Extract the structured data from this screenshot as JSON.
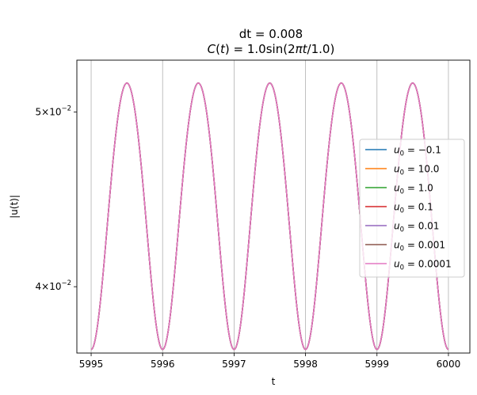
{
  "chart_data": {
    "type": "line",
    "title_line1": "dt = 0.008",
    "title_line2_prefix": "C",
    "title_line2_paren_open": "(",
    "title_line2_var": "t",
    "title_line2_paren_close": ")",
    "title_line2_eq": " = 1.0sin(2",
    "title_line2_pi": "π",
    "title_line2_t": "t",
    "title_line2_tail": "/1.0)",
    "xlabel": "t",
    "ylabel": "|u(t)|",
    "scale_y": "log",
    "xlim": [
      5994.8,
      6000.3
    ],
    "ylim": [
      0.03675,
      0.05342
    ],
    "x_ticks": [
      5995,
      5996,
      5997,
      5998,
      5999,
      6000
    ],
    "x_tick_labels": [
      "5995",
      "5996",
      "5997",
      "5998",
      "5999",
      "6000"
    ],
    "y_ticks": [
      {
        "value": 0.05,
        "mantissa": "5",
        "times": "×",
        "base": "10",
        "exp": "−2"
      },
      {
        "value": 0.04,
        "mantissa": "4",
        "times": "×",
        "base": "10",
        "exp": "−2"
      }
    ],
    "grid_x": true,
    "legend_position": "center-right",
    "series_model": {
      "mean": 0.0444,
      "amplitude": 0.00748,
      "period": 1.0,
      "x_min_at": 5995.0,
      "x_end": 6000.0
    },
    "series": [
      {
        "name": "u0 = −0.1",
        "label_sub": "0",
        "label_value": " = −0.1",
        "color": "#1f77b4"
      },
      {
        "name": "u0 = 10.0",
        "label_sub": "0",
        "label_value": " = 10.0",
        "color": "#ff7f0e"
      },
      {
        "name": "u0 = 1.0",
        "label_sub": "0",
        "label_value": " = 1.0",
        "color": "#2ca02c"
      },
      {
        "name": "u0 = 0.1",
        "label_sub": "0",
        "label_value": " = 0.1",
        "color": "#d62728"
      },
      {
        "name": "u0 = 0.01",
        "label_sub": "0",
        "label_value": " = 0.01",
        "color": "#9467bd"
      },
      {
        "name": "u0 = 0.001",
        "label_sub": "0",
        "label_value": " = 0.001",
        "color": "#8c564b"
      },
      {
        "name": "u0 = 0.0001",
        "label_sub": "0",
        "label_value": " = 0.0001",
        "color": "#e377c2"
      }
    ],
    "legend_symbol": "u"
  }
}
